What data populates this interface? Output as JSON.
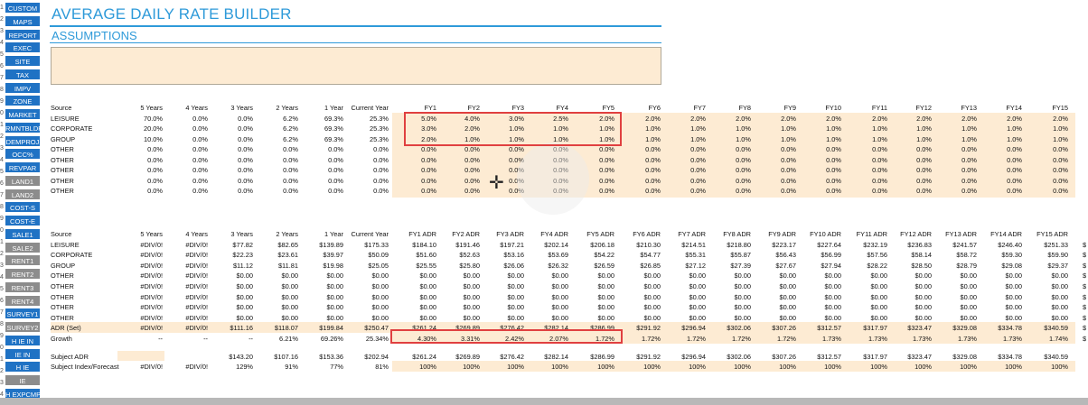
{
  "title": "AVERAGE DAILY RATE BUILDER",
  "section": "ASSUMPTIONS",
  "sidebar": [
    {
      "label": "CUSTOM",
      "style": "blue"
    },
    {
      "label": "MAPS",
      "style": "blue"
    },
    {
      "label": "REPORT",
      "style": "blue"
    },
    {
      "label": "EXEC",
      "style": "blue"
    },
    {
      "label": "SITE",
      "style": "blue"
    },
    {
      "label": "TAX",
      "style": "blue"
    },
    {
      "label": "IMPV",
      "style": "blue"
    },
    {
      "label": "ZONE",
      "style": "blue"
    },
    {
      "label": "MARKET",
      "style": "blue"
    },
    {
      "label": "RMNTBLDR",
      "style": "blue"
    },
    {
      "label": "DEMPROJ",
      "style": "blue"
    },
    {
      "label": "OCC%",
      "style": "blue"
    },
    {
      "label": "REVPAR",
      "style": "blue"
    },
    {
      "label": "LAND1",
      "style": "gray"
    },
    {
      "label": "LAND2",
      "style": "gray"
    },
    {
      "label": "COST-S",
      "style": "blue"
    },
    {
      "label": "COST-E",
      "style": "blue"
    },
    {
      "label": "SALE1",
      "style": "blue"
    },
    {
      "label": "SALE2",
      "style": "gray"
    },
    {
      "label": "RENT1",
      "style": "gray"
    },
    {
      "label": "RENT2",
      "style": "gray"
    },
    {
      "label": "RENT3",
      "style": "gray"
    },
    {
      "label": "RENT4",
      "style": "gray"
    },
    {
      "label": "SURVEY1",
      "style": "blue"
    },
    {
      "label": "SURVEY2",
      "style": "gray"
    },
    {
      "label": "H IE IN",
      "style": "blue"
    },
    {
      "label": "IE IN",
      "style": "blue"
    },
    {
      "label": "H IE",
      "style": "blue"
    },
    {
      "label": "IE",
      "style": "gray"
    },
    {
      "label": "H EXPCMP",
      "style": "blue"
    }
  ],
  "row_numbers": [
    "1",
    "2",
    "3",
    "4",
    "5",
    "6",
    "7",
    "8",
    "9",
    "0",
    "1",
    "2",
    "3",
    "4",
    "5",
    "6",
    "7",
    "8",
    "9",
    "0",
    "1",
    "2",
    "3",
    "4",
    "5",
    "6",
    "7",
    "8",
    "9",
    "0",
    "1",
    "2",
    "3",
    "4"
  ],
  "growth_table": {
    "headers": [
      "Source",
      "5 Years",
      "4 Years",
      "3 Years",
      "2 Years",
      "1 Year",
      "Current Year",
      "FY1",
      "FY2",
      "FY3",
      "FY4",
      "FY5",
      "FY6",
      "FY7",
      "FY8",
      "FY9",
      "FY10",
      "FY11",
      "FY12",
      "FY13",
      "FY14",
      "FY15"
    ],
    "rows": [
      [
        "LEISURE",
        "70.0%",
        "0.0%",
        "0.0%",
        "6.2%",
        "69.3%",
        "25.3%",
        "5.0%",
        "4.0%",
        "3.0%",
        "2.5%",
        "2.0%",
        "2.0%",
        "2.0%",
        "2.0%",
        "2.0%",
        "2.0%",
        "2.0%",
        "2.0%",
        "2.0%",
        "2.0%",
        "2.0%"
      ],
      [
        "CORPORATE",
        "20.0%",
        "0.0%",
        "0.0%",
        "6.2%",
        "69.3%",
        "25.3%",
        "3.0%",
        "2.0%",
        "1.0%",
        "1.0%",
        "1.0%",
        "1.0%",
        "1.0%",
        "1.0%",
        "1.0%",
        "1.0%",
        "1.0%",
        "1.0%",
        "1.0%",
        "1.0%",
        "1.0%"
      ],
      [
        "GROUP",
        "10.0%",
        "0.0%",
        "0.0%",
        "6.2%",
        "69.3%",
        "25.3%",
        "2.0%",
        "1.0%",
        "1.0%",
        "1.0%",
        "1.0%",
        "1.0%",
        "1.0%",
        "1.0%",
        "1.0%",
        "1.0%",
        "1.0%",
        "1.0%",
        "1.0%",
        "1.0%",
        "1.0%"
      ],
      [
        "OTHER",
        "0.0%",
        "0.0%",
        "0.0%",
        "0.0%",
        "0.0%",
        "0.0%",
        "0.0%",
        "0.0%",
        "0.0%",
        "0.0%",
        "0.0%",
        "0.0%",
        "0.0%",
        "0.0%",
        "0.0%",
        "0.0%",
        "0.0%",
        "0.0%",
        "0.0%",
        "0.0%",
        "0.0%"
      ],
      [
        "OTHER",
        "0.0%",
        "0.0%",
        "0.0%",
        "0.0%",
        "0.0%",
        "0.0%",
        "0.0%",
        "0.0%",
        "0.0%",
        "0.0%",
        "0.0%",
        "0.0%",
        "0.0%",
        "0.0%",
        "0.0%",
        "0.0%",
        "0.0%",
        "0.0%",
        "0.0%",
        "0.0%",
        "0.0%"
      ],
      [
        "OTHER",
        "0.0%",
        "0.0%",
        "0.0%",
        "0.0%",
        "0.0%",
        "0.0%",
        "0.0%",
        "0.0%",
        "0.0%",
        "0.0%",
        "0.0%",
        "0.0%",
        "0.0%",
        "0.0%",
        "0.0%",
        "0.0%",
        "0.0%",
        "0.0%",
        "0.0%",
        "0.0%",
        "0.0%"
      ],
      [
        "OTHER",
        "0.0%",
        "0.0%",
        "0.0%",
        "0.0%",
        "0.0%",
        "0.0%",
        "0.0%",
        "0.0%",
        "0.0%",
        "0.0%",
        "0.0%",
        "0.0%",
        "0.0%",
        "0.0%",
        "0.0%",
        "0.0%",
        "0.0%",
        "0.0%",
        "0.0%",
        "0.0%",
        "0.0%"
      ],
      [
        "OTHER",
        "0.0%",
        "0.0%",
        "0.0%",
        "0.0%",
        "0.0%",
        "0.0%",
        "0.0%",
        "0.0%",
        "0.0%",
        "0.0%",
        "0.0%",
        "0.0%",
        "0.0%",
        "0.0%",
        "0.0%",
        "0.0%",
        "0.0%",
        "0.0%",
        "0.0%",
        "0.0%",
        "0.0%"
      ]
    ]
  },
  "adr_table": {
    "headers": [
      "Source",
      "5 Years",
      "4 Years",
      "3 Years",
      "2 Years",
      "1 Year",
      "Current Year",
      "FY1 ADR",
      "FY2 ADR",
      "FY3 ADR",
      "FY4 ADR",
      "FY5 ADR",
      "FY6 ADR",
      "FY7 ADR",
      "FY8 ADR",
      "FY9 ADR",
      "FY10 ADR",
      "FY11 ADR",
      "FY12 ADR",
      "FY13 ADR",
      "FY14 ADR",
      "FY15 ADR"
    ],
    "rows": [
      [
        "LEISURE",
        "#DIV/0!",
        "#DIV/0!",
        "$77.82",
        "$82.65",
        "$139.89",
        "$175.33",
        "$184.10",
        "$191.46",
        "$197.21",
        "$202.14",
        "$206.18",
        "$210.30",
        "$214.51",
        "$218.80",
        "$223.17",
        "$227.64",
        "$232.19",
        "$236.83",
        "$241.57",
        "$246.40",
        "$251.33"
      ],
      [
        "CORPORATE",
        "#DIV/0!",
        "#DIV/0!",
        "$22.23",
        "$23.61",
        "$39.97",
        "$50.09",
        "$51.60",
        "$52.63",
        "$53.16",
        "$53.69",
        "$54.22",
        "$54.77",
        "$55.31",
        "$55.87",
        "$56.43",
        "$56.99",
        "$57.56",
        "$58.14",
        "$58.72",
        "$59.30",
        "$59.90"
      ],
      [
        "GROUP",
        "#DIV/0!",
        "#DIV/0!",
        "$11.12",
        "$11.81",
        "$19.98",
        "$25.05",
        "$25.55",
        "$25.80",
        "$26.06",
        "$26.32",
        "$26.59",
        "$26.85",
        "$27.12",
        "$27.39",
        "$27.67",
        "$27.94",
        "$28.22",
        "$28.50",
        "$28.79",
        "$29.08",
        "$29.37"
      ],
      [
        "OTHER",
        "#DIV/0!",
        "#DIV/0!",
        "$0.00",
        "$0.00",
        "$0.00",
        "$0.00",
        "$0.00",
        "$0.00",
        "$0.00",
        "$0.00",
        "$0.00",
        "$0.00",
        "$0.00",
        "$0.00",
        "$0.00",
        "$0.00",
        "$0.00",
        "$0.00",
        "$0.00",
        "$0.00",
        "$0.00"
      ],
      [
        "OTHER",
        "#DIV/0!",
        "#DIV/0!",
        "$0.00",
        "$0.00",
        "$0.00",
        "$0.00",
        "$0.00",
        "$0.00",
        "$0.00",
        "$0.00",
        "$0.00",
        "$0.00",
        "$0.00",
        "$0.00",
        "$0.00",
        "$0.00",
        "$0.00",
        "$0.00",
        "$0.00",
        "$0.00",
        "$0.00"
      ],
      [
        "OTHER",
        "#DIV/0!",
        "#DIV/0!",
        "$0.00",
        "$0.00",
        "$0.00",
        "$0.00",
        "$0.00",
        "$0.00",
        "$0.00",
        "$0.00",
        "$0.00",
        "$0.00",
        "$0.00",
        "$0.00",
        "$0.00",
        "$0.00",
        "$0.00",
        "$0.00",
        "$0.00",
        "$0.00",
        "$0.00"
      ],
      [
        "OTHER",
        "#DIV/0!",
        "#DIV/0!",
        "$0.00",
        "$0.00",
        "$0.00",
        "$0.00",
        "$0.00",
        "$0.00",
        "$0.00",
        "$0.00",
        "$0.00",
        "$0.00",
        "$0.00",
        "$0.00",
        "$0.00",
        "$0.00",
        "$0.00",
        "$0.00",
        "$0.00",
        "$0.00",
        "$0.00"
      ],
      [
        "OTHER",
        "#DIV/0!",
        "#DIV/0!",
        "$0.00",
        "$0.00",
        "$0.00",
        "$0.00",
        "$0.00",
        "$0.00",
        "$0.00",
        "$0.00",
        "$0.00",
        "$0.00",
        "$0.00",
        "$0.00",
        "$0.00",
        "$0.00",
        "$0.00",
        "$0.00",
        "$0.00",
        "$0.00",
        "$0.00"
      ],
      [
        "ADR (Set)",
        "#DIV/0!",
        "#DIV/0!",
        "$111.16",
        "$118.07",
        "$199.84",
        "$250.47",
        "$261.24",
        "$269.89",
        "$276.42",
        "$282.14",
        "$286.99",
        "$291.92",
        "$296.94",
        "$302.06",
        "$307.26",
        "$312.57",
        "$317.97",
        "$323.47",
        "$329.08",
        "$334.78",
        "$340.59"
      ],
      [
        "Growth",
        "--",
        "--",
        "--",
        "6.21%",
        "69.26%",
        "25.34%",
        "4.30%",
        "3.31%",
        "2.42%",
        "2.07%",
        "1.72%",
        "1.72%",
        "1.72%",
        "1.72%",
        "1.72%",
        "1.73%",
        "1.73%",
        "1.73%",
        "1.73%",
        "1.73%",
        "1.74%"
      ]
    ],
    "subject_rows": [
      [
        "Subject ADR",
        "",
        "",
        "$143.20",
        "$107.16",
        "$153.36",
        "$202.94",
        "$261.24",
        "$269.89",
        "$276.42",
        "$282.14",
        "$286.99",
        "$291.92",
        "$296.94",
        "$302.06",
        "$307.26",
        "$312.57",
        "$317.97",
        "$323.47",
        "$329.08",
        "$334.78",
        "$340.59"
      ],
      [
        "Subject Index/Forecast",
        "#DIV/0!",
        "#DIV/0!",
        "129%",
        "91%",
        "77%",
        "81%",
        "100%",
        "100%",
        "100%",
        "100%",
        "100%",
        "100%",
        "100%",
        "100%",
        "100%",
        "100%",
        "100%",
        "100%",
        "100%",
        "100%",
        "100%"
      ]
    ]
  },
  "overflow_col": [
    "$",
    "$",
    "$",
    "$",
    "$",
    "$",
    "$",
    "$",
    "$",
    "$"
  ],
  "colors": {
    "accent": "#2e9ad9",
    "input_fill": "#fdebd3",
    "highlight": "#e04040",
    "nav_blue": "#1f72c4",
    "nav_gray": "#8c8c8c"
  }
}
